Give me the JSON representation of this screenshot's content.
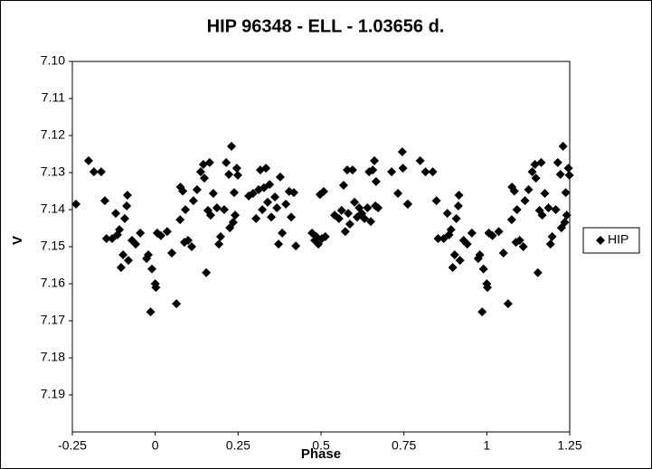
{
  "chart_data": {
    "type": "scatter",
    "title": "HIP 96348  - ELL - 1.03656 d.",
    "x_label": "Phase",
    "y_label": "V",
    "xlim": [
      -0.25,
      1.25
    ],
    "xticks": [
      -0.25,
      0,
      0.25,
      0.5,
      0.75,
      1,
      1.25
    ],
    "ylim": [
      7.2,
      7.1
    ],
    "yticks": [
      {
        "value": 7.1,
        "label": "7.10"
      },
      7.11,
      7.12,
      7.13,
      7.14,
      7.15,
      7.16,
      7.17,
      7.18,
      7.19
    ],
    "grid": false,
    "legend": "right",
    "series": [
      {
        "name": "HIP",
        "color": "#000000",
        "x": [
          0.006,
          -0.01,
          0,
          0.002,
          -0.014,
          0.017,
          0.036,
          0.05,
          0.064,
          0.075,
          0.076,
          0.083,
          0.091,
          0.088,
          0.099,
          0.11,
          0.115,
          0.126,
          0.137,
          0.145,
          0.148,
          0.159,
          0.154,
          0.164,
          0.167,
          0.175,
          0.186,
          0.192,
          0.197,
          0.208,
          0.214,
          0.222,
          0.23,
          0.225,
          0.235,
          0.246,
          0.249,
          0.238,
          0.241,
          1.006,
          0.99,
          1,
          1.002,
          0.986,
          1.017,
          1.036,
          1.05,
          1.064,
          1.075,
          1.076,
          1.083,
          1.091,
          1.088,
          1.099,
          1.11,
          1.115,
          1.126,
          1.137,
          1.145,
          1.148,
          1.159,
          1.154,
          1.164,
          1.167,
          1.175,
          1.186,
          1.192,
          1.197,
          1.208,
          1.214,
          1.222,
          1.23,
          1.225,
          1.235,
          1.246,
          1.249,
          1.238,
          1.241,
          0.282,
          0.295,
          0.304,
          0.312,
          0.317,
          0.323,
          0.328,
          0.334,
          0.339,
          0.345,
          0.35,
          0.361,
          0.367,
          0.372,
          0.377,
          0.383,
          0.394,
          0.404,
          0.418,
          0.424,
          0.41,
          0.473,
          0.481,
          0.486,
          0.492,
          0.497,
          0.503,
          0.508,
          0.513,
          0.541,
          0.554,
          0.562,
          0.568,
          0.573,
          0.579,
          0.582,
          0.587,
          0.595,
          0.601,
          0.609,
          0.615,
          0.623,
          0.631,
          0.64,
          0.645,
          0.65,
          0.656,
          0.661,
          0.664,
          0.666,
          0.672,
          0.713,
          0.732,
          0.745,
          0.747,
          0.762,
          -0.239,
          -0.201,
          -0.185,
          -0.163,
          -0.152,
          -0.147,
          -0.13,
          -0.119,
          -0.114,
          -0.108,
          -0.103,
          -0.097,
          -0.092,
          -0.086,
          -0.084,
          -0.081,
          -0.07,
          -0.059,
          -0.045,
          -0.026,
          -0.021,
          0.761,
          0.799,
          0.815,
          0.837,
          0.848,
          0.853,
          0.87,
          0.881,
          0.886,
          0.892,
          0.897,
          0.903,
          0.908,
          0.914,
          0.916,
          0.919,
          0.93,
          0.941,
          0.955,
          0.974,
          0.979
        ],
        "values": [
          7.1463,
          7.156,
          7.16,
          7.161,
          7.1676,
          7.147,
          7.1459,
          7.1517,
          7.1654,
          7.1427,
          7.1339,
          7.135,
          7.14,
          7.1488,
          7.1483,
          7.15,
          7.1376,
          7.1346,
          7.1298,
          7.1278,
          7.1315,
          7.1402,
          7.157,
          7.1273,
          7.1415,
          7.1356,
          7.1395,
          7.1493,
          7.1473,
          7.14,
          7.1273,
          7.1305,
          7.1229,
          7.1449,
          7.1434,
          7.1288,
          7.1307,
          7.1354,
          7.1415,
          7.1463,
          7.156,
          7.16,
          7.161,
          7.1676,
          7.147,
          7.1459,
          7.1517,
          7.1654,
          7.1427,
          7.1339,
          7.135,
          7.14,
          7.1488,
          7.1483,
          7.15,
          7.1376,
          7.1346,
          7.1298,
          7.1278,
          7.1315,
          7.1402,
          7.157,
          7.1273,
          7.1415,
          7.1356,
          7.1395,
          7.1493,
          7.1473,
          7.14,
          7.1273,
          7.1305,
          7.1229,
          7.1449,
          7.1434,
          7.1288,
          7.1307,
          7.1354,
          7.1415,
          7.1363,
          7.1356,
          7.1424,
          7.1346,
          7.1293,
          7.14,
          7.1341,
          7.1288,
          7.138,
          7.1332,
          7.142,
          7.1366,
          7.1395,
          7.1493,
          7.1312,
          7.1463,
          7.1385,
          7.1351,
          7.1354,
          7.1498,
          7.142,
          7.1463,
          7.1483,
          7.1473,
          7.1493,
          7.1359,
          7.1478,
          7.1351,
          7.1473,
          7.1415,
          7.1424,
          7.1402,
          7.1334,
          7.1459,
          7.1293,
          7.141,
          7.1439,
          7.1293,
          7.138,
          7.142,
          7.1395,
          7.141,
          7.1424,
          7.1395,
          7.1298,
          7.1432,
          7.1293,
          7.1268,
          7.139,
          7.1324,
          7.1395,
          7.1298,
          7.1356,
          7.1244,
          7.1288,
          7.1385,
          7.1385,
          7.1268,
          7.1298,
          7.1298,
          7.1376,
          7.1478,
          7.1478,
          7.141,
          7.1468,
          7.1454,
          7.1556,
          7.1522,
          7.1424,
          7.139,
          7.1361,
          7.1537,
          7.1483,
          7.1493,
          7.1463,
          7.1532,
          7.1522,
          7.1385,
          7.1268,
          7.1298,
          7.1298,
          7.1376,
          7.1478,
          7.1478,
          7.141,
          7.1468,
          7.1454,
          7.1556,
          7.1522,
          7.1424,
          7.139,
          7.1361,
          7.1537,
          7.1483,
          7.1493,
          7.1463,
          7.1532,
          7.1522
        ]
      }
    ]
  }
}
